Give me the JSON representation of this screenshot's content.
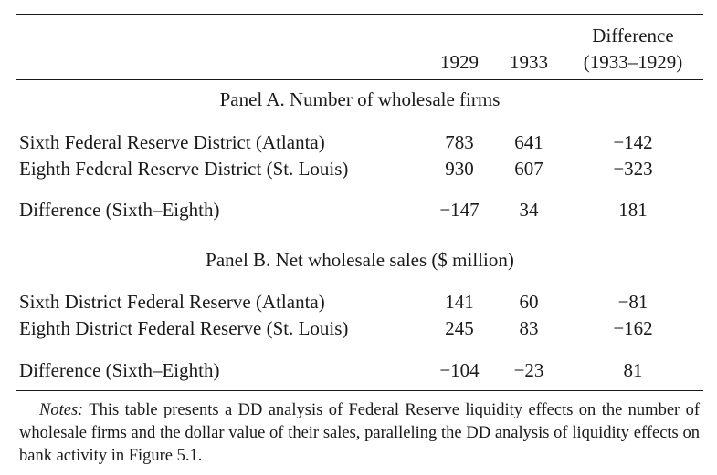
{
  "header": {
    "col1": "1929",
    "col2": "1933",
    "col3_line1": "Difference",
    "col3_line2": "(1933–1929)"
  },
  "panel_a": {
    "title": "Panel A. Number of wholesale firms",
    "rows": [
      {
        "label": "Sixth Federal Reserve District (Atlanta)",
        "v1929": "783",
        "v1933": "641",
        "diff": "−142"
      },
      {
        "label": "Eighth Federal Reserve District (St. Louis)",
        "v1929": "930",
        "v1933": "607",
        "diff": "−323"
      },
      {
        "label": "Difference (Sixth–Eighth)",
        "v1929": "−147",
        "v1933": "34",
        "diff": "181"
      }
    ]
  },
  "panel_b": {
    "title": "Panel B. Net wholesale sales ($ million)",
    "rows": [
      {
        "label": "Sixth District Federal Reserve (Atlanta)",
        "v1929": "141",
        "v1933": "60",
        "diff": "−81"
      },
      {
        "label": "Eighth District Federal Reserve (St. Louis)",
        "v1929": "245",
        "v1933": "83",
        "diff": "−162"
      },
      {
        "label": "Difference (Sixth–Eighth)",
        "v1929": "−104",
        "v1933": "−23",
        "diff": "81"
      }
    ]
  },
  "notes": {
    "lead": "Notes:",
    "text": " This table presents a DD analysis of Federal Reserve liquidity effects on the number of wholesale firms and the dollar value of their sales, paralleling the DD analysis of liquidity effects on bank activity in Figure 5.1."
  }
}
